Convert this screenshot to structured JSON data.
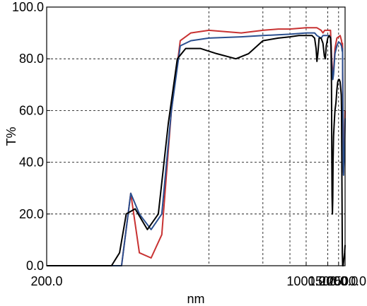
{
  "chart_data": {
    "type": "line",
    "xlabel": "nm",
    "ylabel": "T%",
    "xlim": [
      200,
      2500
    ],
    "ylim": [
      0,
      100
    ],
    "x_scale": "reciprocal",
    "grid": true,
    "grid_style": "dashed",
    "x_ticks": [
      {
        "value": 200,
        "label": "200.0"
      },
      {
        "value": 1000,
        "label": "1000.0"
      },
      {
        "value": 1500,
        "label": "1500.0"
      },
      {
        "value": 2000,
        "label": "2000.0"
      },
      {
        "value": 2500,
        "label": "2500.0"
      }
    ],
    "x_grid": [
      400,
      600,
      800,
      1000,
      1500,
      2000
    ],
    "y_ticks": [
      {
        "value": 0,
        "label": "0.0"
      },
      {
        "value": 20,
        "label": "20.0"
      },
      {
        "value": 40,
        "label": "40.0"
      },
      {
        "value": 60,
        "label": "60.0"
      },
      {
        "value": 80,
        "label": "80.0"
      },
      {
        "value": 100,
        "label": "100.0"
      }
    ],
    "series": [
      {
        "color": "#c83232",
        "points": [
          [
            200,
            0
          ],
          [
            260,
            0
          ],
          [
            270,
            28
          ],
          [
            280,
            5
          ],
          [
            295,
            3
          ],
          [
            310,
            12
          ],
          [
            325,
            60
          ],
          [
            340,
            87
          ],
          [
            360,
            90
          ],
          [
            400,
            91
          ],
          [
            500,
            90
          ],
          [
            600,
            91
          ],
          [
            700,
            91.5
          ],
          [
            800,
            91.5
          ],
          [
            1000,
            92
          ],
          [
            1200,
            92
          ],
          [
            1300,
            91
          ],
          [
            1350,
            90
          ],
          [
            1400,
            91
          ],
          [
            1450,
            91
          ],
          [
            1500,
            91
          ],
          [
            1550,
            91
          ],
          [
            1600,
            91
          ],
          [
            1650,
            80
          ],
          [
            1700,
            74
          ],
          [
            1730,
            75
          ],
          [
            1800,
            84
          ],
          [
            1900,
            88
          ],
          [
            2000,
            88.5
          ],
          [
            2100,
            89
          ],
          [
            2150,
            88
          ],
          [
            2200,
            87
          ],
          [
            2240,
            85
          ],
          [
            2270,
            86
          ],
          [
            2280,
            84
          ],
          [
            2290,
            75
          ],
          [
            2320,
            55
          ],
          [
            2340,
            41
          ],
          [
            2360,
            36
          ],
          [
            2380,
            40
          ],
          [
            2420,
            44
          ],
          [
            2450,
            47
          ],
          [
            2500,
            60
          ]
        ]
      },
      {
        "color": "#2a4f8f",
        "points": [
          [
            200,
            0
          ],
          [
            260,
            0
          ],
          [
            270,
            28
          ],
          [
            280,
            20
          ],
          [
            295,
            14
          ],
          [
            310,
            20
          ],
          [
            325,
            60
          ],
          [
            340,
            85
          ],
          [
            360,
            87
          ],
          [
            400,
            88
          ],
          [
            500,
            88.5
          ],
          [
            600,
            89
          ],
          [
            800,
            89.5
          ],
          [
            1000,
            90
          ],
          [
            1150,
            90
          ],
          [
            1200,
            89
          ],
          [
            1300,
            88
          ],
          [
            1350,
            89
          ],
          [
            1400,
            89
          ],
          [
            1500,
            89
          ],
          [
            1600,
            88.5
          ],
          [
            1650,
            78
          ],
          [
            1700,
            72
          ],
          [
            1730,
            74
          ],
          [
            1800,
            82
          ],
          [
            1900,
            85
          ],
          [
            2000,
            86.5
          ],
          [
            2100,
            86
          ],
          [
            2200,
            85
          ],
          [
            2250,
            83
          ],
          [
            2270,
            84
          ],
          [
            2280,
            82
          ],
          [
            2290,
            74
          ],
          [
            2320,
            52
          ],
          [
            2340,
            38
          ],
          [
            2360,
            35
          ],
          [
            2380,
            38
          ],
          [
            2420,
            42
          ],
          [
            2450,
            45
          ],
          [
            2500,
            57
          ]
        ]
      },
      {
        "color": "#000000",
        "points": [
          [
            200,
            0
          ],
          [
            250,
            0
          ],
          [
            258,
            5
          ],
          [
            265,
            20
          ],
          [
            275,
            22
          ],
          [
            290,
            14
          ],
          [
            305,
            20
          ],
          [
            320,
            55
          ],
          [
            335,
            80
          ],
          [
            350,
            84
          ],
          [
            380,
            84
          ],
          [
            420,
            82
          ],
          [
            480,
            80
          ],
          [
            530,
            82
          ],
          [
            600,
            87
          ],
          [
            700,
            88
          ],
          [
            800,
            88.5
          ],
          [
            900,
            89
          ],
          [
            1000,
            89
          ],
          [
            1100,
            89
          ],
          [
            1150,
            88
          ],
          [
            1180,
            84
          ],
          [
            1200,
            79
          ],
          [
            1220,
            82
          ],
          [
            1250,
            88
          ],
          [
            1300,
            88
          ],
          [
            1350,
            86
          ],
          [
            1390,
            81
          ],
          [
            1420,
            80
          ],
          [
            1450,
            85
          ],
          [
            1500,
            88
          ],
          [
            1550,
            89
          ],
          [
            1600,
            88
          ],
          [
            1620,
            85
          ],
          [
            1640,
            70
          ],
          [
            1655,
            40
          ],
          [
            1665,
            27
          ],
          [
            1680,
            20
          ],
          [
            1695,
            26
          ],
          [
            1710,
            40
          ],
          [
            1730,
            50
          ],
          [
            1760,
            55
          ],
          [
            1800,
            60
          ],
          [
            1850,
            63
          ],
          [
            1900,
            68
          ],
          [
            1950,
            71
          ],
          [
            2000,
            72
          ],
          [
            2050,
            72
          ],
          [
            2100,
            71
          ],
          [
            2150,
            68
          ],
          [
            2180,
            66
          ],
          [
            2200,
            60
          ],
          [
            2230,
            30
          ],
          [
            2260,
            5
          ],
          [
            2290,
            0
          ],
          [
            2320,
            0
          ],
          [
            2350,
            1
          ],
          [
            2400,
            3
          ],
          [
            2450,
            5
          ],
          [
            2500,
            8
          ]
        ]
      }
    ]
  }
}
